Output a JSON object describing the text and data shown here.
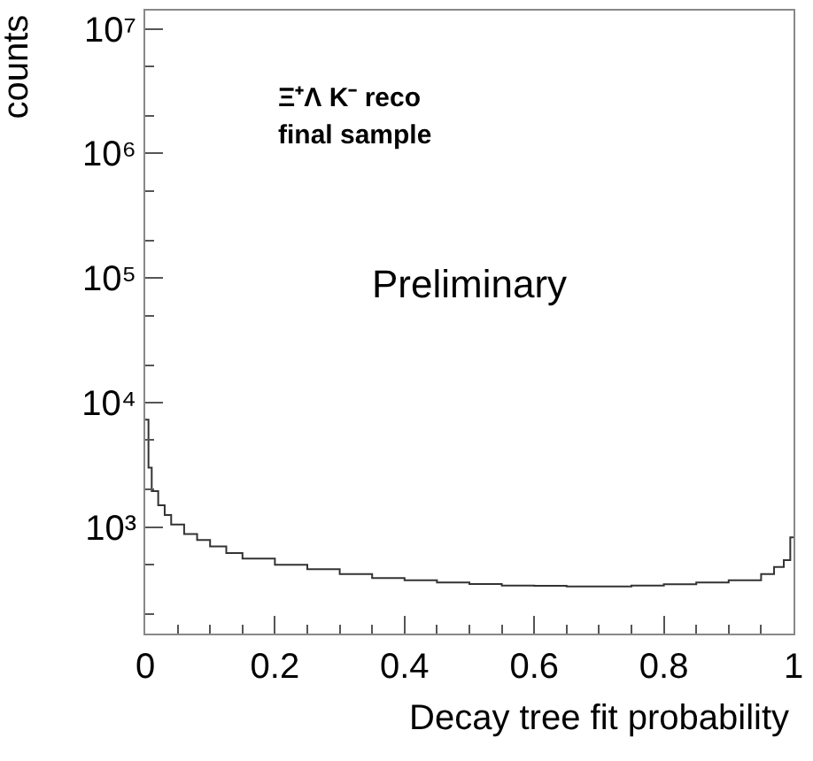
{
  "chart_data": {
    "type": "histogram",
    "xlabel": "Decay tree fit probability",
    "ylabel": "counts",
    "annotations": [
      "Ξ⁺Λ K⁻ reco",
      "final sample",
      "Preliminary"
    ],
    "bins": [
      0,
      0.005,
      0.01,
      0.02,
      0.03,
      0.04,
      0.06,
      0.08,
      0.1,
      0.125,
      0.15,
      0.2,
      0.25,
      0.3,
      0.35,
      0.4,
      0.45,
      0.5,
      0.55,
      0.6,
      0.65,
      0.7,
      0.75,
      0.8,
      0.85,
      0.9,
      0.95,
      0.97,
      0.985,
      0.995,
      1.0
    ],
    "values": [
      7300,
      3000,
      1950,
      1500,
      1250,
      1050,
      880,
      790,
      700,
      620,
      560,
      500,
      460,
      420,
      390,
      375,
      360,
      350,
      340,
      338,
      335,
      335,
      340,
      348,
      360,
      375,
      420,
      480,
      545,
      830
    ],
    "color": "#333333",
    "log": "y",
    "xlim": [
      0,
      1
    ],
    "ylim": [
      140,
      14000000
    ],
    "xticks": [
      0,
      0.2,
      0.4,
      0.6,
      0.8,
      1
    ],
    "yticks": [
      {
        "value": 1000,
        "label": "10³"
      },
      {
        "value": 10000,
        "label": "10⁴"
      },
      {
        "value": 100000,
        "label": "10⁵"
      },
      {
        "value": 1000000,
        "label": "10⁶"
      },
      {
        "value": 10000000,
        "label": "10⁷"
      }
    ],
    "line_style": "solid"
  }
}
